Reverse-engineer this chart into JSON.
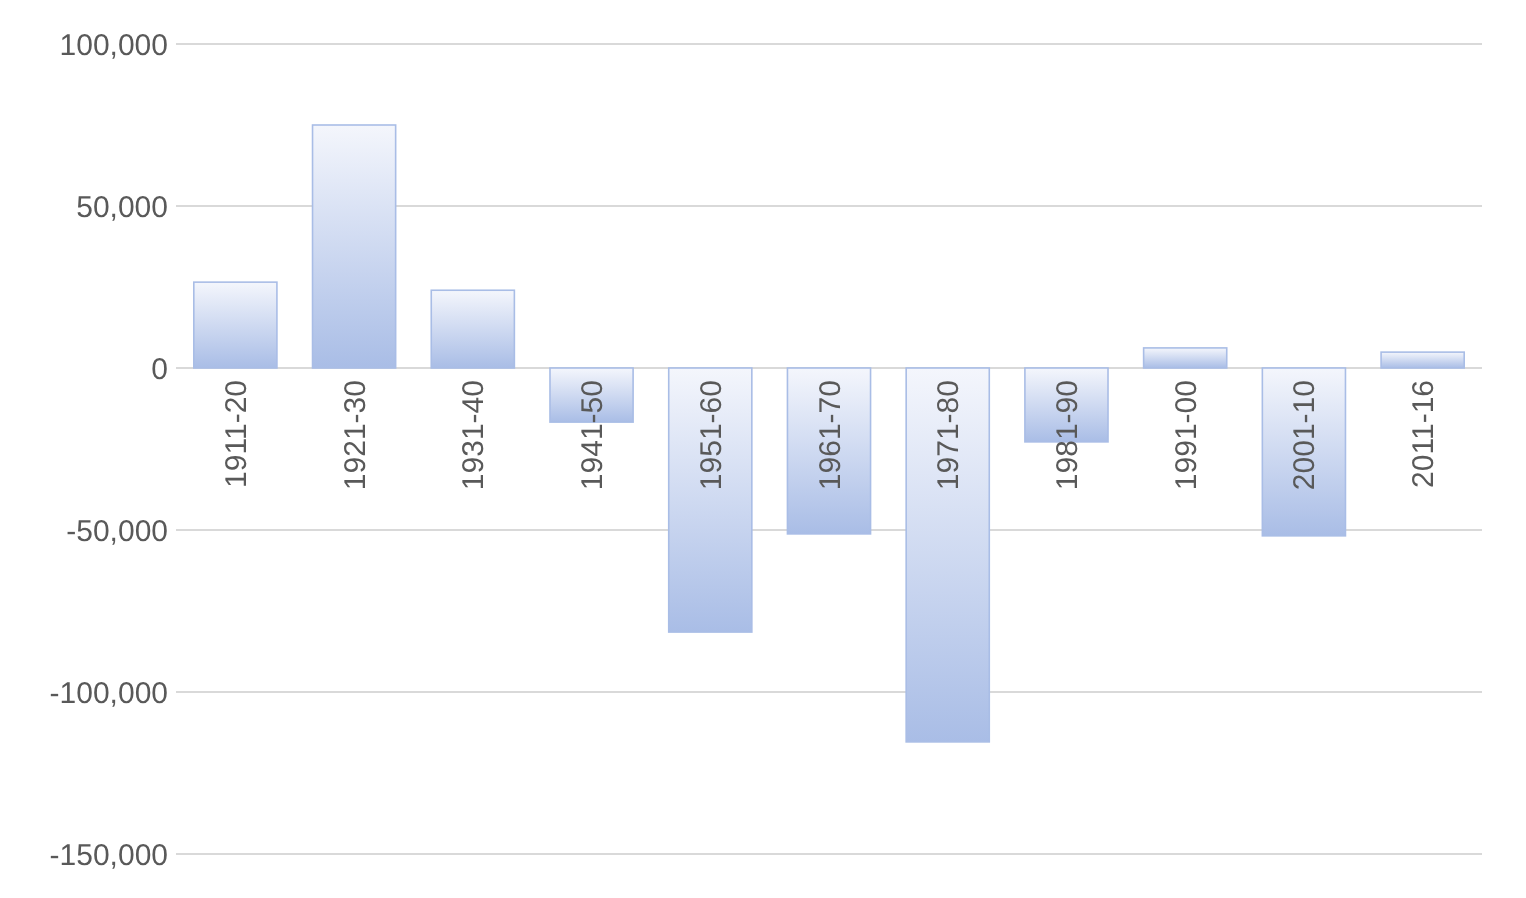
{
  "chart_data": {
    "type": "bar",
    "categories": [
      "1911-20",
      "1921-30",
      "1931-40",
      "1941-50",
      "1951-60",
      "1961-70",
      "1971-80",
      "1981-90",
      "1991-00",
      "2001-10",
      "2011-16"
    ],
    "values": [
      26500,
      75000,
      24000,
      -16700,
      -81500,
      -51200,
      -115400,
      -22800,
      6200,
      -51800,
      4900
    ],
    "color": "#a9bde6",
    "ylim": [
      -150000,
      100000
    ],
    "yticks": [
      {
        "value": -150000,
        "label": "-150,000"
      },
      {
        "value": -100000,
        "label": "-100,000"
      },
      {
        "value": -50000,
        "label": "-50,000"
      },
      0,
      {
        "value": 50000,
        "label": "50,000"
      },
      {
        "value": 100000,
        "label": "100,000"
      }
    ],
    "grid": true
  }
}
